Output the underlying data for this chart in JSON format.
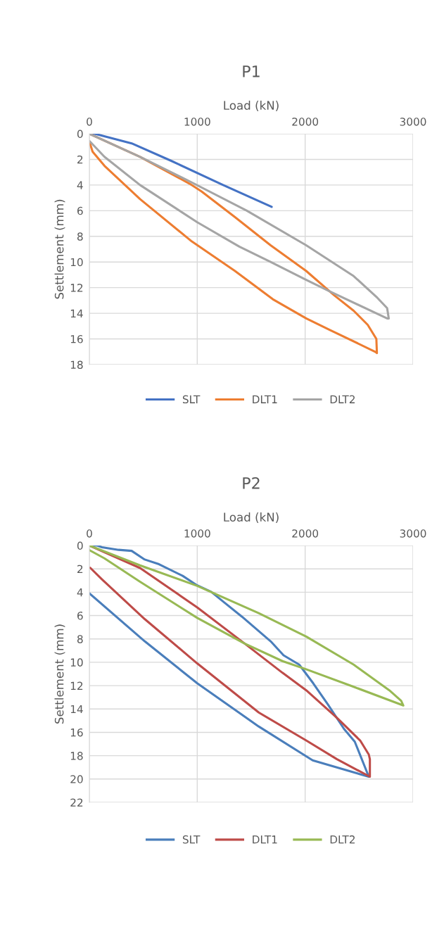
{
  "chart_data": [
    {
      "type": "line",
      "title": "P1",
      "xlabel": "Load (kN)",
      "ylabel": "Settlement (mm)",
      "xlim": [
        0,
        3000
      ],
      "xticks": [
        0,
        1000,
        2000,
        3000
      ],
      "ylim": [
        18,
        0
      ],
      "yticks": [
        0,
        2,
        4,
        6,
        8,
        10,
        12,
        14,
        16,
        18
      ],
      "grid": true,
      "legend": "bottom",
      "marker": "none",
      "line_style": "solid",
      "series": [
        {
          "name": "SLT",
          "color": "#4472c4",
          "x": [
            0,
            50,
            392,
            755,
            1240,
            1570,
            1690
          ],
          "values": [
            0,
            0,
            0.75,
            2.1,
            4.0,
            5.25,
            5.7
          ]
        },
        {
          "name": "DLT1",
          "color": "#ed7d31",
          "x": [
            0,
            470,
            930,
            1040,
            1350,
            1680,
            2010,
            2270,
            2450,
            2580,
            2660,
            2665,
            2650,
            2230,
            2010,
            1700,
            1350,
            950,
            470,
            140,
            30,
            0
          ],
          "values": [
            0,
            1.8,
            3.9,
            4.5,
            6.5,
            8.7,
            10.7,
            12.6,
            13.8,
            14.9,
            16.0,
            17.1,
            17.0,
            15.3,
            14.4,
            12.9,
            10.7,
            8.4,
            5.1,
            2.5,
            1.4,
            0.6
          ]
        },
        {
          "name": "DLT2",
          "color": "#a5a5a5",
          "x": [
            0,
            470,
            950,
            1460,
            2010,
            2450,
            2670,
            2760,
            2775,
            2760,
            2230,
            2010,
            1680,
            1390,
            1000,
            470,
            140,
            5
          ],
          "values": [
            0,
            1.8,
            3.8,
            6.0,
            8.7,
            11.1,
            12.8,
            13.6,
            14.4,
            14.4,
            12.3,
            11.4,
            10.0,
            8.8,
            6.9,
            4.0,
            1.8,
            0.6
          ]
        }
      ]
    },
    {
      "type": "line",
      "title": "P2",
      "xlabel": "Load (kN)",
      "ylabel": "Settlement (mm)",
      "xlim": [
        0,
        3000
      ],
      "xticks": [
        0,
        1000,
        2000,
        3000
      ],
      "ylim": [
        22,
        0
      ],
      "yticks": [
        0,
        2,
        4,
        6,
        8,
        10,
        12,
        14,
        16,
        18,
        20,
        22
      ],
      "grid": true,
      "legend": "bottom",
      "marker": "none",
      "line_style": "solid",
      "series": [
        {
          "name": "SLT",
          "color": "#4a7ebb",
          "x": [
            0,
            73,
            117,
            270,
            392,
            513,
            645,
            865,
            997,
            1130,
            1240,
            1415,
            1680,
            1800,
            1945,
            2075,
            2210,
            2360,
            2460,
            2590,
            2070,
            1570,
            1000,
            513,
            0
          ],
          "values": [
            0,
            0,
            0.15,
            0.37,
            0.46,
            1.2,
            1.6,
            2.6,
            3.4,
            3.97,
            4.8,
            6.1,
            8.2,
            9.4,
            10.2,
            11.8,
            13.6,
            15.7,
            16.8,
            19.8,
            18.4,
            15.5,
            11.8,
            8.2,
            4.1
          ]
        },
        {
          "name": "DLT1",
          "color": "#be4b48",
          "x": [
            0,
            470,
            1000,
            1440,
            1790,
            2010,
            2300,
            2510,
            2590,
            2600,
            2600,
            2295,
            2010,
            1570,
            1000,
            513,
            117,
            7
          ],
          "values": [
            0,
            1.93,
            5.3,
            8.4,
            10.9,
            12.4,
            14.8,
            16.7,
            17.9,
            18.3,
            19.8,
            18.3,
            16.7,
            14.3,
            10.1,
            6.3,
            2.9,
            1.9
          ]
        },
        {
          "name": "DLT2",
          "color": "#98b954",
          "x": [
            0,
            470,
            1000,
            1570,
            2010,
            2450,
            2780,
            2890,
            2910,
            2450,
            2010,
            1790,
            1440,
            1000,
            470,
            140,
            0
          ],
          "values": [
            0,
            1.7,
            3.46,
            5.8,
            7.8,
            10.2,
            12.4,
            13.3,
            13.7,
            12.1,
            10.6,
            9.9,
            8.4,
            6.2,
            3.1,
            1.1,
            0.4
          ]
        }
      ]
    }
  ]
}
